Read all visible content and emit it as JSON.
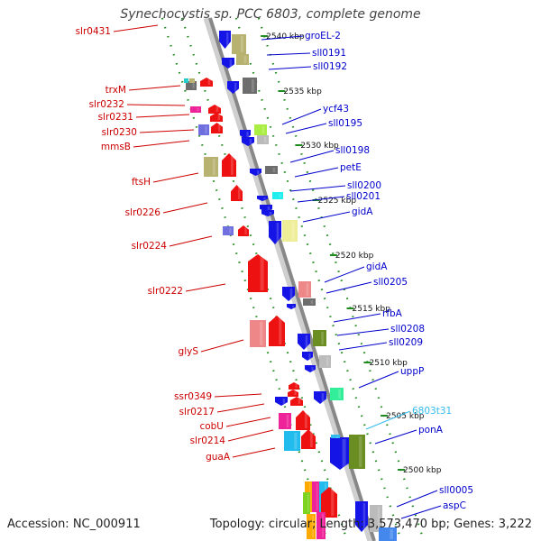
{
  "header": {
    "title": "Synechocystis sp. PCC 6803, complete genome"
  },
  "footer": {
    "accession": "Accession: NC_000911",
    "topology": "Topology: circular; Length: 3,573,470 bp; Genes: 3,222"
  },
  "colors": {
    "backbone": "#888888",
    "ruler_tick": "#1f8a1f",
    "left_label": "#cc0000",
    "right_label": "#0000cc",
    "rna_label": "#33bbee"
  },
  "scale_labels": [
    "2540 kbp",
    "2535 kbp",
    "2530 kbp",
    "2525 kbp",
    "2520 kbp",
    "2515 kbp",
    "2510 kbp",
    "2505 kbp",
    "2500 kbp"
  ],
  "left_genes": [
    "slr0431",
    "trxM",
    "slr0232",
    "slr0231",
    "slr0230",
    "mmsB",
    "ftsH",
    "slr0226",
    "slr0224",
    "slr0222",
    "glyS",
    "ssr0349",
    "slr0217",
    "cobU",
    "slr0214",
    "guaA"
  ],
  "right_genes": [
    "groEL-2",
    "sll0191",
    "sll0192",
    "ycf43",
    "sll0195",
    "sll0198",
    "petE",
    "sll0200",
    "sll0201",
    "gidA",
    "gidA",
    "sll0205",
    "rfbA",
    "sll0208",
    "sll0209",
    "uppP",
    "6803t31",
    "ponA",
    "sll0005",
    "aspC"
  ]
}
